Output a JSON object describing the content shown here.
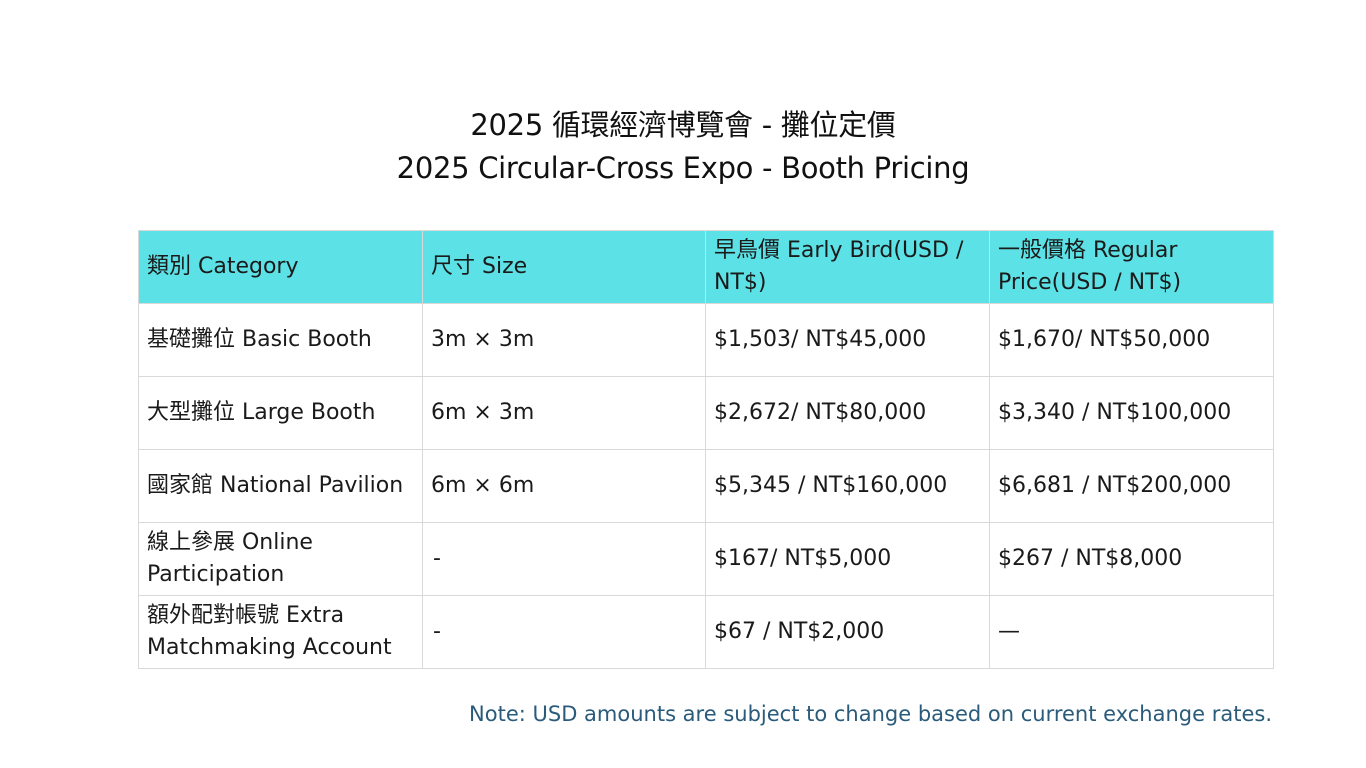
{
  "title": {
    "line1": "2025 循環經濟博覽會 - 攤位定價",
    "line2": "2025 Circular-Cross Expo - Booth Pricing"
  },
  "table": {
    "header_bg": "#5ce1e6",
    "headers": [
      "類別 Category",
      "尺寸 Size",
      "早鳥價 Early Bird(USD / NT$)",
      "一般價格 Regular Price(USD / NT$)"
    ],
    "rows": [
      [
        "基礎攤位 Basic Booth",
        "3m × 3m",
        "$1,503/ NT$45,000",
        "$1,670/ NT$50,000"
      ],
      [
        "大型攤位 Large Booth",
        "6m × 3m",
        "$2,672/ NT$80,000",
        "$3,340 / NT$100,000"
      ],
      [
        "國家館 National Pavilion",
        "6m × 6m",
        "$5,345 / NT$160,000",
        "$6,681 / NT$200,000"
      ],
      [
        "線上參展 Online Participation",
        "-",
        "$167/ NT$5,000",
        "$267 / NT$8,000"
      ],
      [
        "額外配對帳號 Extra Matchmaking Account",
        "-",
        "$67 / NT$2,000",
        "—"
      ]
    ]
  },
  "note": "Note: USD amounts are subject to change based on current exchange rates.",
  "note_color": "#2a5b7b"
}
